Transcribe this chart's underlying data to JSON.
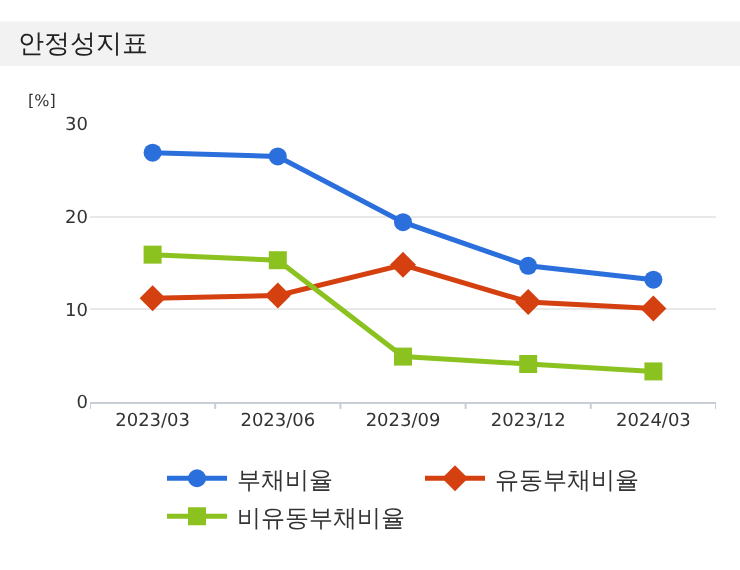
{
  "chart_data": {
    "type": "line",
    "title": "안정성지표",
    "ylabel": "[%]",
    "categories": [
      "2023/03",
      "2023/06",
      "2023/09",
      "2023/12",
      "2024/03"
    ],
    "series": [
      {
        "name": "부채비율",
        "color": "#2a6fdb",
        "marker": "circle",
        "values": [
          26.9,
          26.5,
          19.4,
          14.7,
          13.2
        ]
      },
      {
        "name": "유동부채비율",
        "color": "#d4400f",
        "marker": "diamond",
        "values": [
          11.2,
          11.5,
          14.8,
          10.8,
          10.1
        ]
      },
      {
        "name": "비유동부채비율",
        "color": "#8cc21f",
        "marker": "square",
        "values": [
          15.9,
          15.3,
          4.9,
          4.1,
          3.3
        ]
      }
    ],
    "ylim": [
      0,
      30
    ],
    "yticks": [
      0,
      10,
      20,
      30
    ],
    "grid": "y",
    "legend": "bottom",
    "line_style": "solid"
  }
}
